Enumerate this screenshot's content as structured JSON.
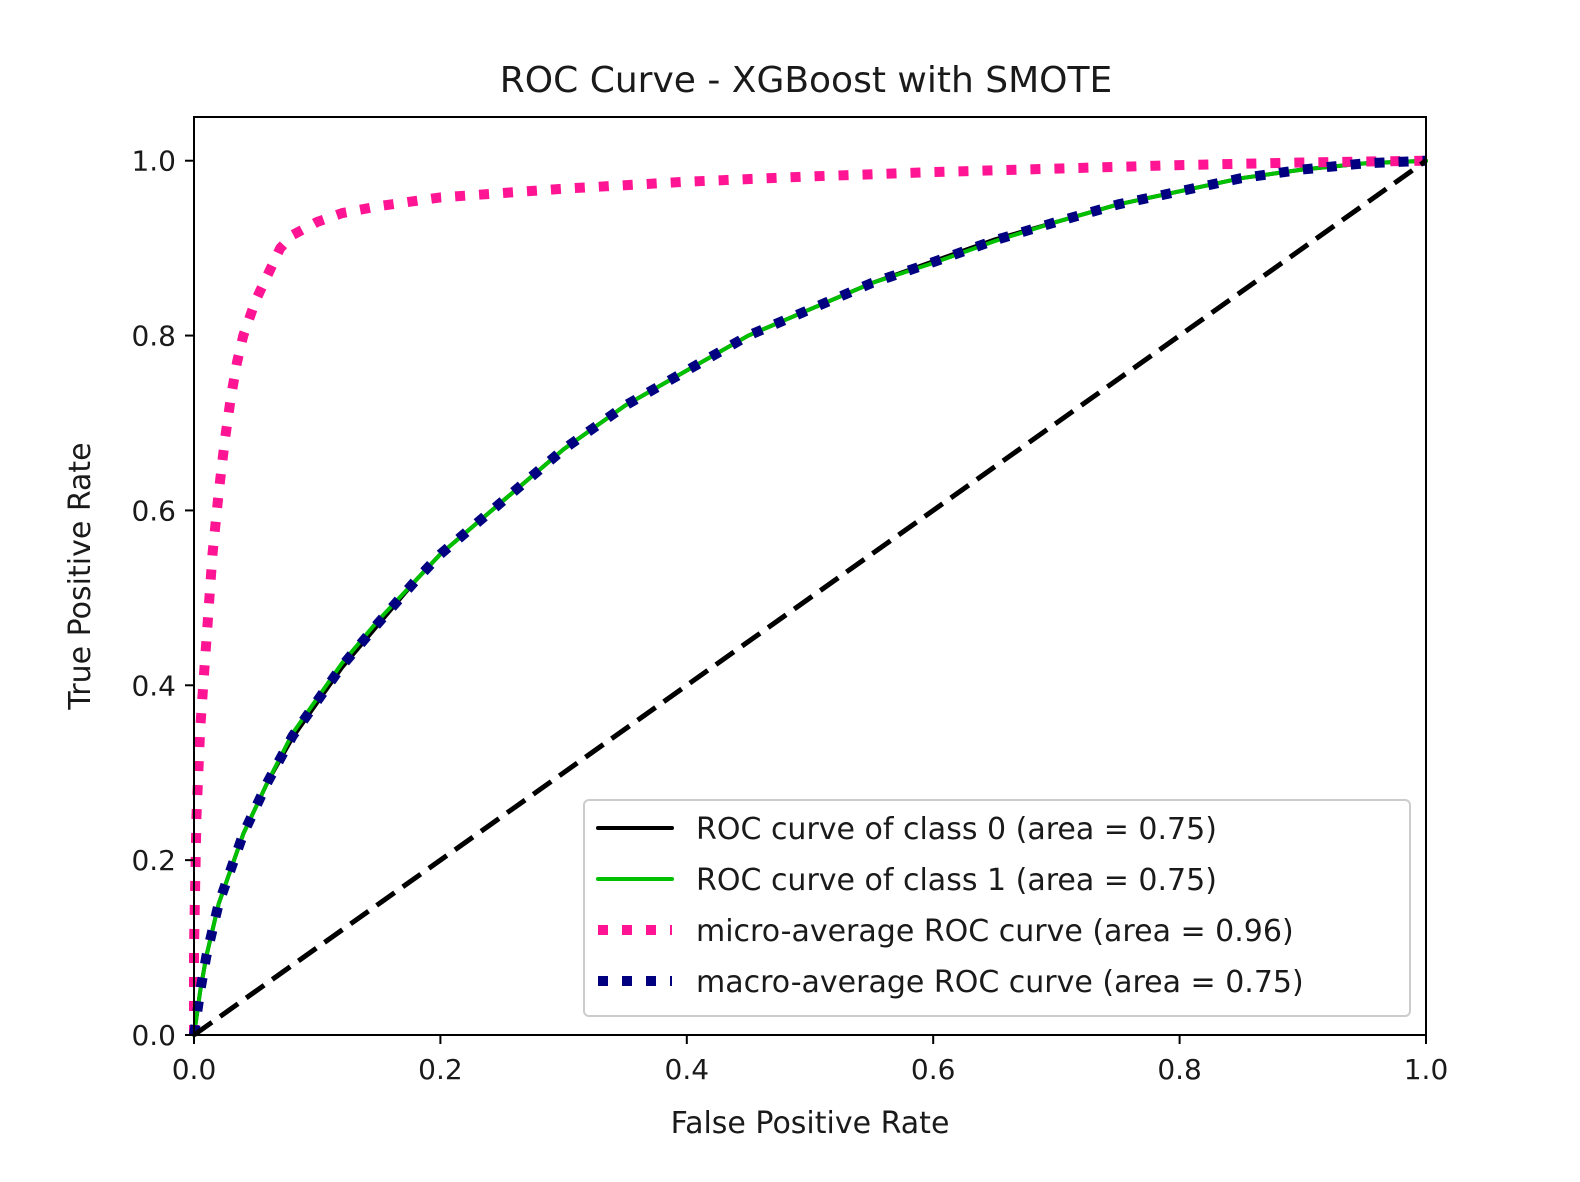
{
  "chart_data": {
    "type": "line",
    "title": "ROC Curve - XGBoost with SMOTE",
    "xlabel": "False Positive Rate",
    "ylabel": "True Positive Rate",
    "xlim": [
      0.0,
      1.0
    ],
    "ylim": [
      0.0,
      1.05
    ],
    "x_ticks": [
      "0.0",
      "0.2",
      "0.4",
      "0.6",
      "0.8",
      "1.0"
    ],
    "y_ticks": [
      "0.0",
      "0.2",
      "0.4",
      "0.6",
      "0.8",
      "1.0"
    ],
    "grid": false,
    "legend_position": "lower-right",
    "series": [
      {
        "name": "ROC curve of class 0 (area = 0.75)",
        "color": "#000000",
        "style": "solid",
        "x": [
          0.0,
          0.005,
          0.01,
          0.02,
          0.03,
          0.04,
          0.05,
          0.06,
          0.08,
          0.1,
          0.12,
          0.15,
          0.18,
          0.2,
          0.25,
          0.3,
          0.35,
          0.4,
          0.45,
          0.5,
          0.55,
          0.6,
          0.65,
          0.7,
          0.75,
          0.8,
          0.85,
          0.9,
          0.95,
          1.0
        ],
        "y": [
          0.0,
          0.05,
          0.09,
          0.15,
          0.19,
          0.23,
          0.26,
          0.29,
          0.34,
          0.38,
          0.42,
          0.47,
          0.52,
          0.55,
          0.61,
          0.67,
          0.72,
          0.76,
          0.8,
          0.83,
          0.86,
          0.885,
          0.91,
          0.93,
          0.95,
          0.965,
          0.98,
          0.99,
          0.997,
          1.0
        ]
      },
      {
        "name": "ROC curve of class 1 (area = 0.75)",
        "color": "#00c000",
        "style": "solid",
        "x": [
          0.0,
          0.005,
          0.01,
          0.02,
          0.03,
          0.04,
          0.05,
          0.06,
          0.08,
          0.1,
          0.12,
          0.15,
          0.18,
          0.2,
          0.25,
          0.3,
          0.35,
          0.4,
          0.45,
          0.5,
          0.55,
          0.6,
          0.65,
          0.7,
          0.75,
          0.8,
          0.85,
          0.9,
          0.95,
          1.0
        ],
        "y": [
          0.0,
          0.05,
          0.09,
          0.15,
          0.19,
          0.23,
          0.26,
          0.29,
          0.345,
          0.385,
          0.425,
          0.475,
          0.52,
          0.55,
          0.61,
          0.67,
          0.72,
          0.76,
          0.8,
          0.83,
          0.86,
          0.883,
          0.908,
          0.93,
          0.95,
          0.965,
          0.98,
          0.99,
          0.997,
          1.0
        ]
      },
      {
        "name": "micro-average ROC curve (area = 0.96)",
        "color": "#ff1493",
        "style": "dotted",
        "x": [
          0.0,
          0.0,
          0.002,
          0.005,
          0.01,
          0.015,
          0.02,
          0.025,
          0.03,
          0.035,
          0.04,
          0.05,
          0.06,
          0.07,
          0.08,
          0.1,
          0.12,
          0.15,
          0.2,
          0.3,
          0.4,
          0.5,
          0.6,
          0.7,
          0.8,
          0.9,
          1.0
        ],
        "y": [
          0.0,
          0.1,
          0.25,
          0.35,
          0.45,
          0.55,
          0.62,
          0.68,
          0.73,
          0.77,
          0.8,
          0.84,
          0.87,
          0.9,
          0.915,
          0.93,
          0.94,
          0.948,
          0.958,
          0.968,
          0.976,
          0.982,
          0.987,
          0.991,
          0.995,
          0.998,
          1.0
        ]
      },
      {
        "name": "macro-average ROC curve (area = 0.75)",
        "color": "#000080",
        "style": "dotted",
        "x": [
          0.0,
          0.005,
          0.01,
          0.02,
          0.03,
          0.04,
          0.05,
          0.06,
          0.08,
          0.1,
          0.12,
          0.15,
          0.18,
          0.2,
          0.25,
          0.3,
          0.35,
          0.4,
          0.45,
          0.5,
          0.55,
          0.6,
          0.65,
          0.7,
          0.75,
          0.8,
          0.85,
          0.9,
          0.95,
          1.0
        ],
        "y": [
          0.0,
          0.05,
          0.09,
          0.15,
          0.19,
          0.23,
          0.26,
          0.29,
          0.342,
          0.382,
          0.422,
          0.472,
          0.52,
          0.55,
          0.61,
          0.67,
          0.72,
          0.76,
          0.8,
          0.83,
          0.86,
          0.884,
          0.909,
          0.93,
          0.95,
          0.965,
          0.98,
          0.99,
          0.997,
          1.0
        ]
      },
      {
        "name": "",
        "color": "#000000",
        "style": "dashed",
        "x": [
          0.0,
          1.0
        ],
        "y": [
          0.0,
          1.0
        ]
      }
    ]
  }
}
